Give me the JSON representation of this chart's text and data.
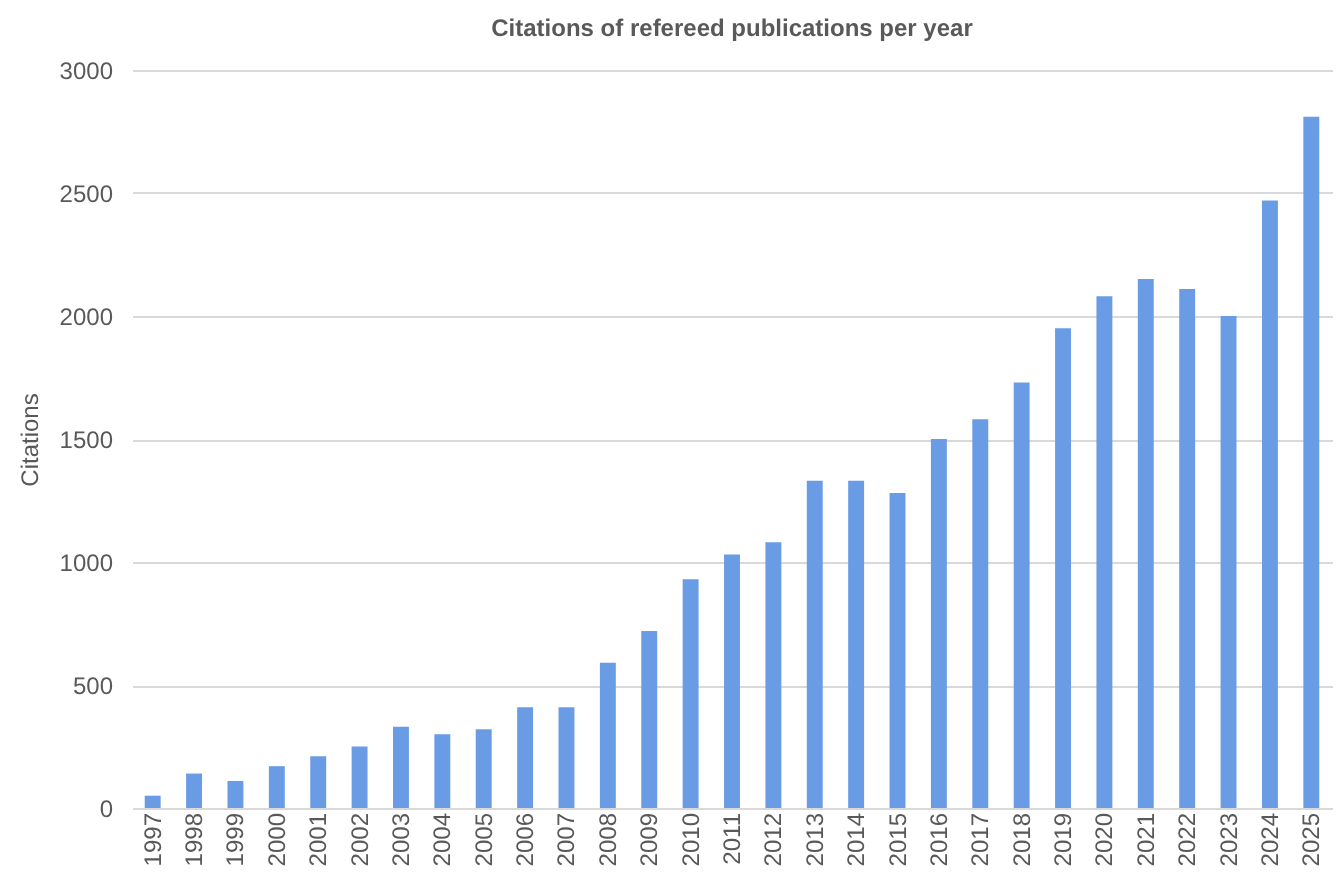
{
  "chart_data": {
    "type": "bar",
    "title": "Citations of refereed publications per year",
    "ylabel": "Citations",
    "categories": [
      "1997",
      "1998",
      "1999",
      "2000",
      "2001",
      "2002",
      "2003",
      "2004",
      "2005",
      "2006",
      "2007",
      "2008",
      "2009",
      "2010",
      "2011",
      "2012",
      "2013",
      "2014",
      "2015",
      "2016",
      "2017",
      "2018",
      "2019",
      "2020",
      "2021",
      "2022",
      "2023",
      "2024",
      "2025"
    ],
    "values": [
      50,
      140,
      110,
      170,
      210,
      250,
      330,
      300,
      320,
      410,
      410,
      590,
      720,
      930,
      1030,
      1080,
      1330,
      1330,
      1280,
      1500,
      1580,
      1730,
      1950,
      2080,
      2150,
      2110,
      2000,
      2470,
      2810
    ],
    "color": "#6a9ce6",
    "ylim": [
      0,
      3000
    ],
    "yticks": [
      0,
      500,
      1000,
      1500,
      2000,
      2500,
      3000
    ],
    "grid": "y"
  }
}
